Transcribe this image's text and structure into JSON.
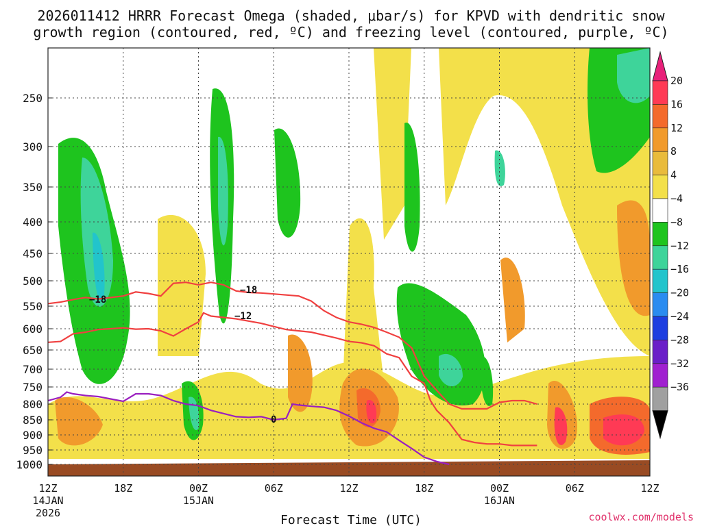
{
  "title_lines": [
    "2026011412 HRRR Forecast Omega (shaded, μbar/s) for KPVD with dendritic snow",
    "growth region (contoured, red, ºC) and freezing level (contoured, purple, ºC)"
  ],
  "credit": "coolwx.com/models",
  "chart_data": {
    "type": "heatmap",
    "title": "2026011412 HRRR Forecast Omega (shaded, μbar/s) for KPVD with dendritic snow growth region (contoured, red, ºC) and freezing level (contoured, purple, ºC)",
    "xlabel": "Forecast Time (UTC)",
    "ylabel": "",
    "x_range_hours": [
      0,
      48
    ],
    "y_range_hpa": [
      1000,
      200
    ],
    "y_ticks": [
      "250",
      "300",
      "350",
      "400",
      "450",
      "500",
      "550",
      "600",
      "650",
      "700",
      "750",
      "800",
      "850",
      "900",
      "950",
      "1000"
    ],
    "x_ticks": [
      {
        "label": "12Z",
        "sub": "14JAN",
        "sub2": "2026"
      },
      {
        "label": "18Z",
        "sub": "",
        "sub2": ""
      },
      {
        "label": "00Z",
        "sub": "15JAN",
        "sub2": ""
      },
      {
        "label": "06Z",
        "sub": "",
        "sub2": ""
      },
      {
        "label": "12Z",
        "sub": "",
        "sub2": ""
      },
      {
        "label": "18Z",
        "sub": "",
        "sub2": ""
      },
      {
        "label": "00Z",
        "sub": "16JAN",
        "sub2": ""
      },
      {
        "label": "06Z",
        "sub": "",
        "sub2": ""
      },
      {
        "label": "12Z",
        "sub": "",
        "sub2": ""
      }
    ],
    "colorbar": {
      "labels": [
        "20",
        "16",
        "12",
        "8",
        "4",
        "−4",
        "−8",
        "−12",
        "−16",
        "−20",
        "−24",
        "−28",
        "−32",
        "−36"
      ],
      "colors": [
        "#ff3a55",
        "#f46a2c",
        "#f19a2c",
        "#e9bb3c",
        "#f3e04a",
        "#ffffff",
        "#1ec41e",
        "#3ed49a",
        "#22c4cc",
        "#2a8cf0",
        "#1d3ee0",
        "#6a1ec8",
        "#a020d0",
        "#a0a0a0"
      ],
      "top_color": "#e8207a",
      "bottom_color": "#000000"
    },
    "contour_labels": {
      "dgz_upper": "−18",
      "dgz_lower": "−12",
      "freezing": "0"
    },
    "series": [
      {
        "name": "DGZ −18ºC",
        "color": "#f04040",
        "points": [
          [
            0,
            545
          ],
          [
            1,
            542
          ],
          [
            2,
            537
          ],
          [
            3,
            533
          ],
          [
            4,
            536
          ],
          [
            5,
            533
          ],
          [
            6,
            530
          ],
          [
            7,
            522
          ],
          [
            8,
            525
          ],
          [
            9,
            530
          ],
          [
            10,
            505
          ],
          [
            11,
            503
          ],
          [
            12,
            508
          ],
          [
            13,
            503
          ],
          [
            14,
            508
          ],
          [
            15,
            520
          ],
          [
            16,
            523
          ],
          [
            17,
            524
          ],
          [
            18,
            526
          ],
          [
            19,
            528
          ],
          [
            20,
            530
          ],
          [
            21,
            540
          ],
          [
            22,
            560
          ],
          [
            23,
            575
          ],
          [
            24,
            585
          ],
          [
            25,
            590
          ],
          [
            26,
            597
          ],
          [
            27,
            608
          ],
          [
            28,
            620
          ],
          [
            29,
            645
          ],
          [
            30,
            720
          ],
          [
            31,
            760
          ],
          [
            32,
            800
          ],
          [
            33,
            815
          ],
          [
            34,
            815
          ],
          [
            35,
            815
          ],
          [
            36,
            795
          ],
          [
            37,
            790
          ],
          [
            38,
            790
          ],
          [
            39,
            800
          ]
        ]
      },
      {
        "name": "DGZ −12ºC",
        "color": "#f04040",
        "points": [
          [
            0,
            632
          ],
          [
            1,
            630
          ],
          [
            2,
            612
          ],
          [
            3,
            608
          ],
          [
            4,
            602
          ],
          [
            5,
            600
          ],
          [
            6,
            598
          ],
          [
            7,
            601
          ],
          [
            8,
            600
          ],
          [
            9,
            605
          ],
          [
            10,
            617
          ],
          [
            11,
            600
          ],
          [
            12,
            585
          ],
          [
            12.4,
            565
          ],
          [
            13,
            572
          ],
          [
            14,
            575
          ],
          [
            15,
            578
          ],
          [
            16,
            583
          ],
          [
            17,
            588
          ],
          [
            18,
            595
          ],
          [
            19,
            602
          ],
          [
            20,
            605
          ],
          [
            21,
            608
          ],
          [
            22,
            615
          ],
          [
            23,
            622
          ],
          [
            24,
            630
          ],
          [
            25,
            633
          ],
          [
            26,
            640
          ],
          [
            27,
            660
          ],
          [
            28,
            670
          ],
          [
            29,
            720
          ],
          [
            30,
            740
          ],
          [
            30.5,
            790
          ],
          [
            31,
            820
          ],
          [
            32,
            860
          ],
          [
            33,
            915
          ],
          [
            34,
            925
          ],
          [
            35,
            930
          ],
          [
            36,
            930
          ],
          [
            37,
            935
          ],
          [
            38,
            935
          ],
          [
            39,
            935
          ]
        ]
      },
      {
        "name": "Freezing level 0ºC",
        "color": "#9a1fbf",
        "points": [
          [
            0,
            790
          ],
          [
            1,
            780
          ],
          [
            1.5,
            765
          ],
          [
            2,
            770
          ],
          [
            3,
            775
          ],
          [
            4,
            778
          ],
          [
            5,
            785
          ],
          [
            6,
            792
          ],
          [
            7,
            770
          ],
          [
            8,
            770
          ],
          [
            9,
            775
          ],
          [
            10,
            790
          ],
          [
            11,
            800
          ],
          [
            12,
            805
          ],
          [
            13,
            820
          ],
          [
            14,
            830
          ],
          [
            15,
            840
          ],
          [
            16,
            842
          ],
          [
            17,
            840
          ],
          [
            18,
            850
          ],
          [
            19,
            845
          ],
          [
            19.5,
            800
          ],
          [
            20,
            803
          ],
          [
            21,
            807
          ],
          [
            22,
            810
          ],
          [
            23,
            820
          ],
          [
            24,
            838
          ],
          [
            25,
            860
          ],
          [
            26,
            878
          ],
          [
            27,
            890
          ],
          [
            28,
            918
          ],
          [
            29,
            945
          ],
          [
            30,
            975
          ],
          [
            31,
            990
          ],
          [
            32,
            1000
          ]
        ]
      }
    ]
  }
}
